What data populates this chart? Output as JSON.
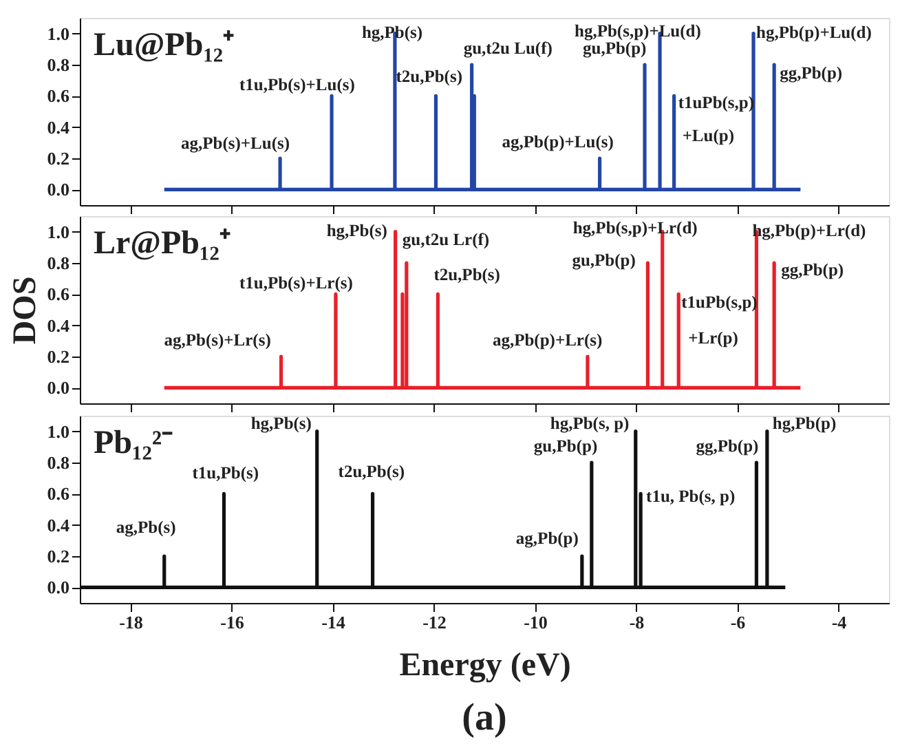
{
  "chart_data": [
    {
      "type": "line",
      "title": "Lu@Pb₁₂⁺",
      "tick_labels": "y",
      "xlim": [
        -19,
        -3
      ],
      "xticks": [
        -18,
        -16,
        -14,
        -12,
        -10,
        -8,
        -6,
        -4
      ],
      "ylim": [
        -0.1,
        1.1
      ],
      "yticks": [
        {
          "value": 0,
          "label": "0.0"
        },
        {
          "value": 0.2,
          "label": "0.2"
        },
        {
          "value": 0.4,
          "label": "0.4"
        },
        {
          "value": 0.6,
          "label": "0.6"
        },
        {
          "value": 0.8,
          "label": "0.8"
        },
        {
          "value": 1,
          "label": "1.0"
        }
      ],
      "grid": false,
      "series": [
        {
          "color": "#2346a6",
          "x": [
            -17.33,
            -15.04,
            -15.04,
            -15.04,
            -14.02,
            -14.02,
            -14.02,
            -12.77,
            -12.77,
            -12.77,
            -11.96,
            -11.96,
            -11.96,
            -11.25,
            -11.25,
            -11.25,
            -11.2,
            -11.2,
            -11.2,
            -8.72,
            -8.72,
            -8.72,
            -7.83,
            -7.83,
            -7.83,
            -7.53,
            -7.53,
            -7.53,
            -7.25,
            -7.25,
            -7.25,
            -5.68,
            -5.68,
            -5.68,
            -5.27,
            -5.27,
            -5.27,
            -4.75
          ],
          "values": [
            0,
            0,
            0.2,
            0,
            0,
            0.6,
            0,
            0,
            1.0,
            0,
            0,
            0.6,
            0,
            0,
            0.8,
            0,
            0,
            0.6,
            0,
            0,
            0.2,
            0,
            0,
            0.8,
            0,
            0,
            1.0,
            0,
            0,
            0.6,
            0,
            0,
            1.0,
            0,
            0,
            0.8,
            0,
            0
          ]
        }
      ],
      "annotations": [
        {
          "text": "ag,Pb(s)+Lu(s)",
          "x": -15.04,
          "y": 0.2
        },
        {
          "text": "t1u,Pb(s)+Lu(s)",
          "x": -14.02,
          "y": 0.6
        },
        {
          "text": "hg,Pb(s)",
          "x": -12.77,
          "y": 1.0
        },
        {
          "text": "t2u,Pb(s)",
          "x": -11.96,
          "y": 0.6
        },
        {
          "text": "gu,t2u Lu(f)",
          "x": -11.25,
          "y": 0.8
        },
        {
          "text": "ag,Pb(p)+Lu(s)",
          "x": -8.72,
          "y": 0.2
        },
        {
          "text": "hg,Pb(s,p)+Lu(d)",
          "x": -7.53,
          "y": 1.0
        },
        {
          "text": "gu,Pb(p)",
          "x": -7.83,
          "y": 0.8
        },
        {
          "text": "t1uPb(s,p)",
          "x": -7.25,
          "y": 0.6
        },
        {
          "text": "+Lu(p)",
          "x": -7.25,
          "y": 0.6
        },
        {
          "text": "hg,Pb(p)+Lu(d)",
          "x": -5.68,
          "y": 1.0
        },
        {
          "text": "gg,Pb(p)",
          "x": -5.27,
          "y": 0.8
        }
      ]
    },
    {
      "type": "line",
      "title": "Lr@Pb₁₂⁺",
      "ylabel": "DOS",
      "tick_labels": "y",
      "xlim": [
        -19,
        -3
      ],
      "xticks": [
        -18,
        -16,
        -14,
        -12,
        -10,
        -8,
        -6,
        -4
      ],
      "ylim": [
        -0.1,
        1.1
      ],
      "yticks": [
        {
          "value": 0,
          "label": "0.0"
        },
        {
          "value": 0.2,
          "label": "0.2"
        },
        {
          "value": 0.4,
          "label": "0.4"
        },
        {
          "value": 0.6,
          "label": "0.6"
        },
        {
          "value": 0.8,
          "label": "0.8"
        },
        {
          "value": 1,
          "label": "1.0"
        }
      ],
      "grid": false,
      "series": [
        {
          "color": "#e8202a",
          "x": [
            -17.33,
            -15.02,
            -15.02,
            -15.02,
            -13.94,
            -13.94,
            -13.94,
            -12.76,
            -12.76,
            -12.76,
            -12.62,
            -12.62,
            -12.62,
            -12.54,
            -12.54,
            -12.54,
            -11.92,
            -11.92,
            -11.92,
            -8.96,
            -8.96,
            -8.96,
            -7.77,
            -7.77,
            -7.77,
            -7.48,
            -7.48,
            -7.48,
            -7.16,
            -7.16,
            -7.16,
            -5.62,
            -5.62,
            -5.62,
            -5.27,
            -5.27,
            -5.27,
            -4.75
          ],
          "values": [
            0,
            0,
            0.2,
            0,
            0,
            0.6,
            0,
            0,
            1.0,
            0,
            0,
            0.6,
            0,
            0,
            0.8,
            0,
            0,
            0.6,
            0,
            0,
            0.2,
            0,
            0,
            0.8,
            0,
            0,
            1.0,
            0,
            0,
            0.6,
            0,
            0,
            1.0,
            0,
            0,
            0.8,
            0,
            0
          ]
        }
      ],
      "annotations": [
        {
          "text": "ag,Pb(s)+Lr(s)",
          "x": -15.02,
          "y": 0.2
        },
        {
          "text": "t1u,Pb(s)+Lr(s)",
          "x": -13.94,
          "y": 0.6
        },
        {
          "text": "hg,Pb(s)",
          "x": -12.76,
          "y": 1.0
        },
        {
          "text": "gu,t2u Lr(f)",
          "x": -12.54,
          "y": 0.8
        },
        {
          "text": "t2u,Pb(s)",
          "x": -11.92,
          "y": 0.6
        },
        {
          "text": "ag,Pb(p)+Lr(s)",
          "x": -8.96,
          "y": 0.2
        },
        {
          "text": "hg,Pb(s,p)+Lr(d)",
          "x": -7.48,
          "y": 1.0
        },
        {
          "text": "gu,Pb(p)",
          "x": -7.77,
          "y": 0.8
        },
        {
          "text": "t1uPb(s,p)",
          "x": -7.16,
          "y": 0.6
        },
        {
          "text": "+Lr(p)",
          "x": -7.16,
          "y": 0.6
        },
        {
          "text": "hg,Pb(p)+Lr(d)",
          "x": -5.62,
          "y": 1.0
        },
        {
          "text": "gg,Pb(p)",
          "x": -5.27,
          "y": 0.8
        }
      ]
    },
    {
      "type": "line",
      "title": "Pb₁₂²⁻",
      "xlabel": "Energy (eV)",
      "xlim": [
        -19,
        -3
      ],
      "xticks": [
        -18,
        -16,
        -14,
        -12,
        -10,
        -8,
        -6,
        -4
      ],
      "ylim": [
        -0.1,
        1.1
      ],
      "yticks": [
        {
          "value": 0,
          "label": "0.0"
        },
        {
          "value": 0.2,
          "label": "0.2"
        },
        {
          "value": 0.4,
          "label": "0.4"
        },
        {
          "value": 0.6,
          "label": "0.6"
        },
        {
          "value": 0.8,
          "label": "0.8"
        },
        {
          "value": 1,
          "label": "1.0"
        }
      ],
      "grid": false,
      "series": [
        {
          "color": "#111111",
          "x": [
            -19,
            -17.33,
            -17.33,
            -17.33,
            -16.15,
            -16.15,
            -16.15,
            -14.31,
            -14.31,
            -14.31,
            -13.21,
            -13.21,
            -13.21,
            -9.07,
            -9.07,
            -9.07,
            -8.88,
            -8.88,
            -8.88,
            -8.01,
            -8.01,
            -8.01,
            -7.91,
            -7.91,
            -7.91,
            -5.62,
            -5.62,
            -5.62,
            -5.41,
            -5.41,
            -5.41,
            -5.05
          ],
          "values": [
            0,
            0,
            0.2,
            0,
            0,
            0.6,
            0,
            0,
            1.0,
            0,
            0,
            0.6,
            0,
            0,
            0.2,
            0,
            0,
            0.8,
            0,
            0,
            1.0,
            0,
            0,
            0.6,
            0,
            0,
            0.8,
            0,
            0,
            1.0,
            0,
            0
          ]
        }
      ],
      "annotations": [
        {
          "text": "ag,Pb(s)",
          "x": -17.33,
          "y": 0.2
        },
        {
          "text": "t1u,Pb(s)",
          "x": -16.15,
          "y": 0.6
        },
        {
          "text": "hg,Pb(s)",
          "x": -14.31,
          "y": 1.0
        },
        {
          "text": "t2u,Pb(s)",
          "x": -13.21,
          "y": 0.6
        },
        {
          "text": "gu,Pb(p)",
          "x": -8.88,
          "y": 0.8
        },
        {
          "text": "ag,Pb(p)",
          "x": -9.07,
          "y": 0.2
        },
        {
          "text": "hg,Pb(s, p)",
          "x": -8.01,
          "y": 1.0
        },
        {
          "text": "t1u, Pb(s, p)",
          "x": -7.91,
          "y": 0.6
        },
        {
          "text": "gg,Pb(p)",
          "x": -5.62,
          "y": 0.8
        },
        {
          "text": "hg,Pb(p)",
          "x": -5.41,
          "y": 1.0
        },
        "(a)"
      ]
    }
  ]
}
